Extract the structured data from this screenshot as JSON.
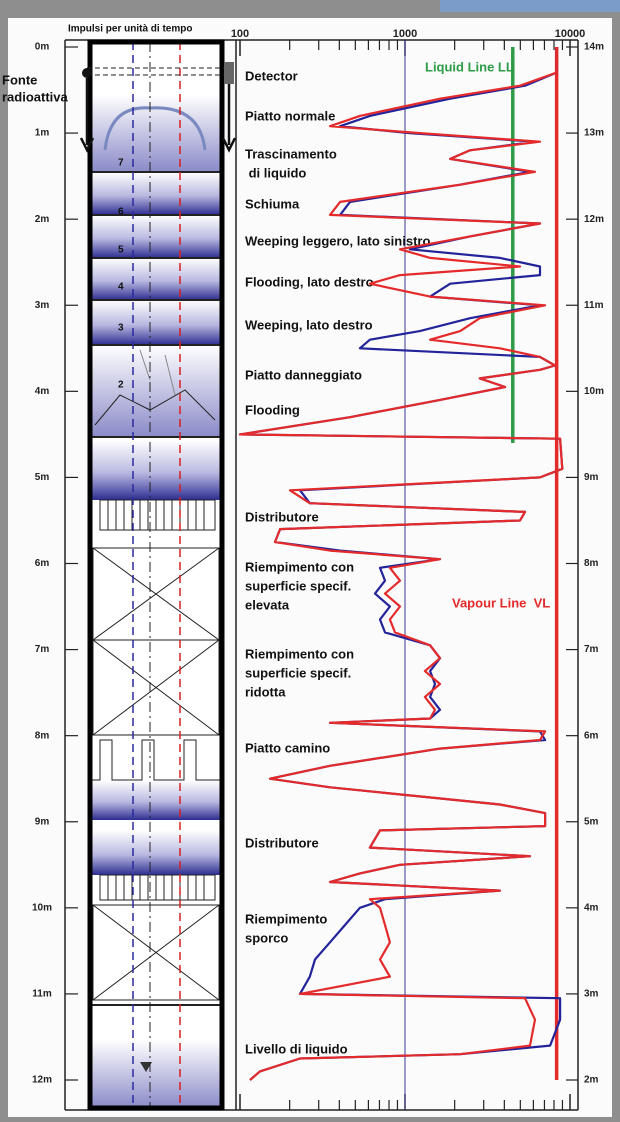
{
  "chart_data": {
    "type": "line",
    "orientation": "vertical",
    "xscale": "log",
    "header": "Impulsi per unità di tempo",
    "source_label": [
      "Fonte",
      "radioattiva"
    ],
    "tray_labels": [
      "7",
      "6",
      "5",
      "4",
      "3",
      "2"
    ],
    "xlim": [
      100,
      10000
    ],
    "xticks": [
      100,
      1000,
      10000
    ],
    "xminorticks": [
      200,
      300,
      400,
      500,
      600,
      700,
      800,
      900,
      2000,
      3000,
      4000,
      5000,
      6000,
      7000,
      8000,
      9000
    ],
    "grid": true,
    "ylim": [
      0,
      12
    ],
    "yticks": [
      {
        "value": 0,
        "label": "0m"
      },
      {
        "value": 1,
        "label": "1m"
      },
      {
        "value": 2,
        "label": "2m"
      },
      {
        "value": 3,
        "label": "3m"
      },
      {
        "value": 4,
        "label": "4m"
      },
      {
        "value": 5,
        "label": "5m"
      },
      {
        "value": 6,
        "label": "6m"
      },
      {
        "value": 7,
        "label": "7m"
      },
      {
        "value": 8,
        "label": "8m"
      },
      {
        "value": 9,
        "label": "9m"
      },
      {
        "value": 10,
        "label": "10m"
      },
      {
        "value": 11,
        "label": "11m"
      },
      {
        "value": 12,
        "label": "12m"
      }
    ],
    "y2lim": [
      14,
      2
    ],
    "y2ticks": [
      {
        "value": 14,
        "label": "14m"
      },
      {
        "value": 13,
        "label": "13m"
      },
      {
        "value": 12,
        "label": "12m"
      },
      {
        "value": 11,
        "label": "11m"
      },
      {
        "value": 10,
        "label": "10m"
      },
      {
        "value": 9,
        "label": "9m"
      },
      {
        "value": 8,
        "label": "8m"
      },
      {
        "value": 7,
        "label": "7m"
      },
      {
        "value": 6,
        "label": "6m"
      },
      {
        "value": 5,
        "label": "5m"
      },
      {
        "value": 4,
        "label": "4m"
      },
      {
        "value": 3,
        "label": "3m"
      },
      {
        "value": 2,
        "label": "2m"
      }
    ],
    "depth": [
      0,
      0.3,
      0.45,
      0.6,
      0.8,
      0.92,
      1.0,
      1.1,
      1.2,
      1.3,
      1.45,
      1.6,
      1.8,
      1.95,
      2.05,
      2.2,
      2.35,
      2.45,
      2.55,
      2.65,
      2.75,
      2.9,
      3.0,
      3.15,
      3.3,
      3.4,
      3.5,
      3.6,
      3.7,
      3.75,
      3.85,
      3.95,
      4.1,
      4.3,
      4.5,
      4.55,
      4.9,
      5.0,
      5.15,
      5.3,
      5.4,
      5.5,
      5.6,
      5.75,
      5.85,
      5.95,
      6.05,
      6.2,
      6.35,
      6.5,
      6.65,
      6.8,
      6.95,
      7.1,
      7.25,
      7.4,
      7.55,
      7.7,
      7.8,
      7.85,
      7.95,
      8.05,
      8.15,
      8.35,
      8.5,
      8.6,
      8.8,
      8.9,
      9.05,
      9.1,
      9.3,
      9.4,
      9.5,
      9.6,
      9.7,
      9.8,
      9.9,
      10.0,
      10.2,
      10.4,
      10.6,
      10.8,
      11.0,
      11.05,
      11.3,
      11.6,
      11.7,
      11.75,
      11.9,
      12.0
    ],
    "series": [
      {
        "color": "#23239a",
        "values": [
          8350,
          8220,
          5340,
          1880,
          613,
          404,
          1070,
          6140,
          2480,
          1880,
          5720,
          2160,
          464,
          404,
          6580,
          2480,
          1070,
          3760,
          6580,
          6580,
          1880,
          1420,
          6580,
          2480,
          1230,
          613,
          533,
          6580,
          8110,
          6580,
          2840,
          4040,
          1630,
          464,
          100,
          8710,
          8980,
          6580,
          231,
          265,
          5340,
          4980,
          175,
          163,
          404,
          1630,
          705,
          756,
          658,
          810,
          705,
          756,
          1420,
          1630,
          1420,
          1520,
          1420,
          1630,
          1420,
          351,
          6580,
          7060,
          1630,
          351,
          152,
          351,
          3760,
          7060,
          7060,
          705,
          613,
          5720,
          932,
          533,
          351,
          3760,
          756,
          533,
          433,
          351,
          285,
          265,
          231,
          8710,
          8710,
          7570,
          2160,
          231,
          132,
          115
        ]
      },
      {
        "color": "#e42a2a",
        "values": [
          8350,
          8220,
          4980,
          1630,
          533,
          351,
          1230,
          6580,
          2480,
          1880,
          6140,
          2160,
          404,
          351,
          6580,
          2480,
          932,
          1420,
          4980,
          932,
          613,
          1420,
          7060,
          2840,
          2160,
          1420,
          3760,
          6580,
          8110,
          6580,
          2840,
          4040,
          1630,
          464,
          100,
          8710,
          8980,
          6580,
          201,
          265,
          5340,
          4980,
          175,
          163,
          351,
          1630,
          810,
          932,
          756,
          932,
          810,
          870,
          1420,
          1630,
          1320,
          1630,
          1320,
          1520,
          1420,
          351,
          7060,
          6580,
          1630,
          351,
          152,
          351,
          3760,
          7060,
          7060,
          705,
          613,
          5720,
          932,
          533,
          351,
          3760,
          613,
          705,
          756,
          810,
          705,
          810,
          231,
          5340,
          6140,
          5720,
          2160,
          231,
          132,
          115
        ]
      }
    ],
    "reference_lines": [
      {
        "name": "Liquid Line LL",
        "value": 4500,
        "depth_range": [
          0,
          4.6
        ],
        "color": "#2e9b47"
      },
      {
        "name": "Vapour Line  VL",
        "value": 8300,
        "depth_range": [
          0,
          12
        ],
        "color": "#e42a2a"
      }
    ],
    "annotations": [
      [
        "Detector"
      ],
      [
        "Piatto normale"
      ],
      [
        "Trascinamento",
        " di liquido"
      ],
      [
        "Schiuma"
      ],
      [
        "Weeping leggero, lato sinistro"
      ],
      [
        "Flooding, lato destro"
      ],
      [
        "Weeping, lato destro"
      ],
      [
        "Piatto danneggiato"
      ],
      [
        "Flooding"
      ],
      [
        "Distributore"
      ],
      [
        "Riempimento con",
        "superficie specif.",
        "elevata"
      ],
      [
        "Riempimento con",
        "superficie specif.",
        "ridotta"
      ],
      [
        "Piatto camino"
      ],
      [
        "Distributore"
      ],
      [
        "Riempimento",
        "sporco"
      ],
      [
        "Livello di liquido"
      ]
    ]
  }
}
